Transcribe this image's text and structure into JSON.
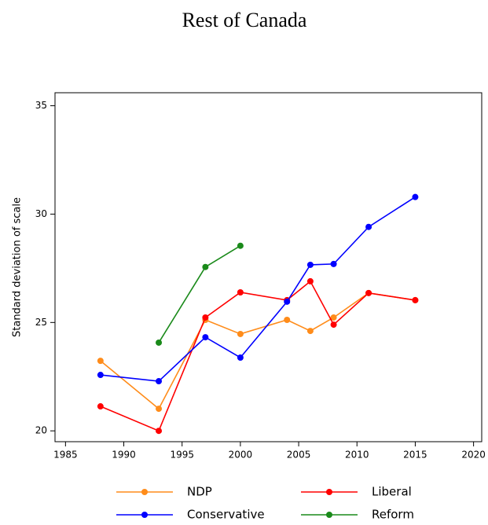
{
  "chart_data": {
    "type": "line",
    "title": "Rest of Canada",
    "y_label": "Standard deviation of scale",
    "x": [
      1988,
      1993,
      1997,
      2000,
      2004,
      2006,
      2008,
      2011,
      2015
    ],
    "series": [
      {
        "name": "NDP",
        "color": "#ff8c1a",
        "values": [
          23.23,
          21.02,
          25.12,
          24.47,
          25.12,
          24.61,
          25.23,
          26.36,
          26.03
        ]
      },
      {
        "name": "Liberal",
        "color": "#ff0000",
        "values": [
          21.13,
          20.0,
          25.23,
          26.39,
          26.03,
          26.9,
          24.9,
          26.36,
          26.03
        ]
      },
      {
        "name": "Conservative",
        "color": "#0000ff",
        "values": [
          22.58,
          22.29,
          24.32,
          23.38,
          25.96,
          27.66,
          27.7,
          29.41,
          30.79
        ]
      },
      {
        "name": "Reform",
        "color": "#1a8a1a",
        "values": [
          null,
          24.07,
          27.56,
          28.54,
          null,
          null,
          null,
          null,
          null
        ]
      }
    ],
    "xlim": [
      1984.1,
      2020.7
    ],
    "xticks": [
      1985,
      1990,
      1995,
      2000,
      2005,
      2010,
      2015,
      2020
    ],
    "ylim": [
      19.5,
      35.6
    ],
    "yticks": [
      20,
      25,
      30,
      35
    ],
    "grid": false
  }
}
